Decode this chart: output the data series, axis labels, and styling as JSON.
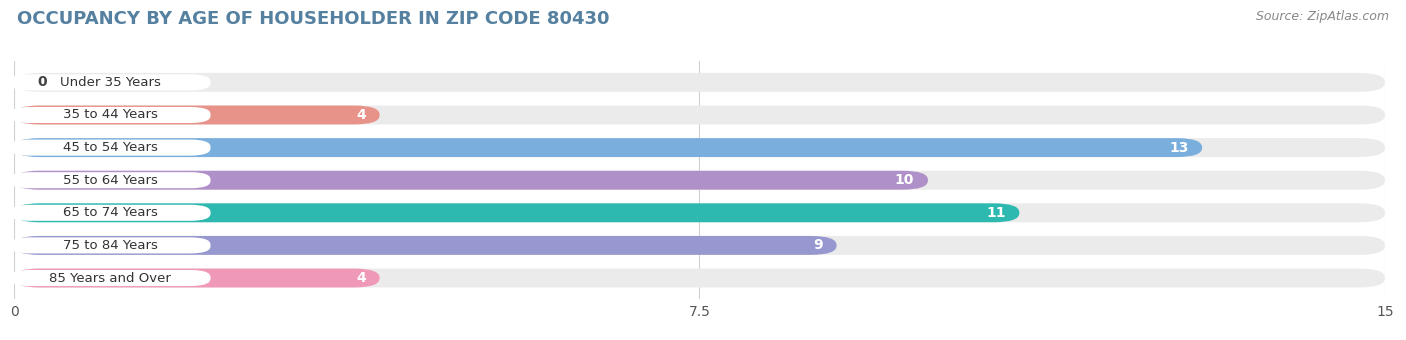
{
  "title": "OCCUPANCY BY AGE OF HOUSEHOLDER IN ZIP CODE 80430",
  "source": "Source: ZipAtlas.com",
  "categories": [
    "Under 35 Years",
    "35 to 44 Years",
    "45 to 54 Years",
    "55 to 64 Years",
    "65 to 74 Years",
    "75 to 84 Years",
    "85 Years and Over"
  ],
  "values": [
    0,
    4,
    13,
    10,
    11,
    9,
    4
  ],
  "bar_colors": [
    "#f5c98a",
    "#e8938a",
    "#7aaedd",
    "#b090c8",
    "#2db8b0",
    "#9898d0",
    "#f098b8"
  ],
  "bar_bg_color": "#ebebeb",
  "xlim": [
    0,
    15
  ],
  "xticks": [
    0,
    7.5,
    15
  ],
  "title_fontsize": 13,
  "source_fontsize": 9,
  "label_fontsize": 9.5,
  "value_fontsize": 9,
  "bg_color": "#ffffff",
  "bar_height": 0.58,
  "label_pill_color": "#ffffff"
}
